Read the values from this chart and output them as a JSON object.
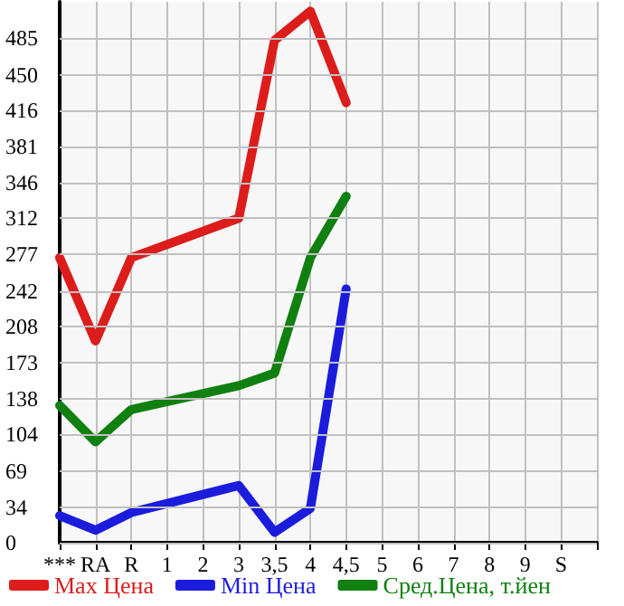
{
  "chart_data": {
    "type": "line",
    "categories": [
      "***",
      "RA",
      "R",
      "1",
      "2",
      "3",
      "3,5",
      "4",
      "4,5",
      "5",
      "6",
      "7",
      "8",
      "9",
      "S",
      null
    ],
    "series": [
      {
        "name": "Max Цена",
        "color": "#dd1c1c",
        "values": [
          274,
          194,
          274,
          null,
          null,
          312,
          483,
          511,
          423,
          null,
          null,
          null,
          null,
          null,
          null,
          null
        ]
      },
      {
        "name": "Min Цена",
        "color": "#1c1cdd",
        "values": [
          26,
          12,
          29,
          null,
          null,
          55,
          10,
          33,
          244,
          null,
          null,
          null,
          null,
          null,
          null,
          null
        ]
      },
      {
        "name": "Сред.Цена, т.йен",
        "color": "#108010",
        "values": [
          132,
          97,
          128,
          null,
          null,
          151,
          163,
          274,
          333,
          null,
          null,
          null,
          null,
          null,
          null,
          null
        ]
      }
    ],
    "ylim": [
      0,
      520
    ],
    "yticks": [
      0,
      34,
      69,
      104,
      138,
      173,
      208,
      242,
      277,
      312,
      346,
      381,
      416,
      450,
      485
    ],
    "grid": true,
    "legend": "bottom",
    "marker": "none",
    "line_style": "solid"
  }
}
